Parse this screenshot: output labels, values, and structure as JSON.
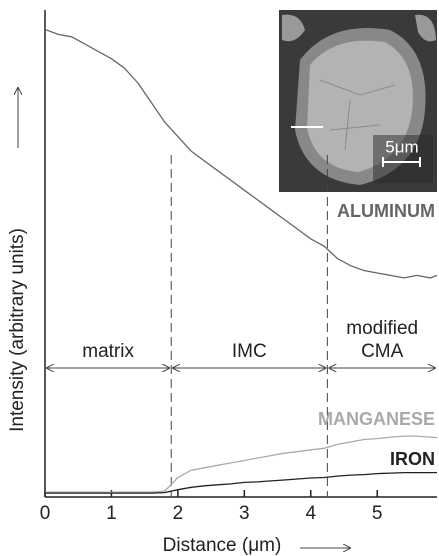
{
  "chart_data": {
    "type": "line",
    "x_label": "Distance (μm)",
    "y_label": "Intensity (arbitrary units)",
    "x": [
      0,
      0.2,
      0.4,
      0.6,
      0.8,
      1.0,
      1.2,
      1.4,
      1.6,
      1.8,
      2.0,
      2.2,
      2.4,
      2.6,
      2.8,
      3.0,
      3.2,
      3.4,
      3.6,
      3.8,
      4.0,
      4.2,
      4.4,
      4.6,
      4.8,
      5.0,
      5.2,
      5.4,
      5.6,
      5.8,
      5.9
    ],
    "series": [
      {
        "name": "ALUMINUM",
        "color": "#666666",
        "values": [
          96,
          95,
          94.5,
          93,
          91.5,
          90,
          88,
          85,
          81,
          77,
          74,
          71,
          69,
          67,
          65,
          63,
          61,
          59,
          57,
          55,
          53,
          51.5,
          49,
          47.5,
          46.5,
          46,
          45.5,
          45,
          45.5,
          45,
          45.5
        ]
      },
      {
        "name": "MANGANESE",
        "color": "#aaaaaa",
        "values": [
          1,
          1,
          1,
          1,
          1,
          1,
          1,
          1,
          1,
          1.2,
          4,
          5.5,
          6,
          6.5,
          7,
          7.5,
          8,
          8.5,
          9,
          9.3,
          9.7,
          10,
          10.8,
          11.3,
          11.8,
          12,
          12.3,
          12.5,
          12.5,
          12.3,
          12.2
        ]
      },
      {
        "name": "IRON",
        "color": "#222222",
        "values": [
          0.8,
          0.8,
          0.8,
          0.8,
          0.8,
          0.8,
          0.8,
          0.8,
          0.8,
          0.9,
          1.5,
          2,
          2.3,
          2.5,
          2.7,
          3,
          3.1,
          3.3,
          3.5,
          3.7,
          3.9,
          4,
          4.3,
          4.5,
          4.6,
          4.8,
          4.9,
          5,
          5,
          5,
          5
        ]
      }
    ],
    "xlim": [
      0,
      5.9
    ],
    "xticks": [
      0,
      1,
      2,
      3,
      4,
      5
    ],
    "ylim": [
      0,
      100
    ],
    "boundaries": [
      1.9,
      4.25
    ],
    "regions": [
      {
        "lines": [
          "matrix"
        ]
      },
      {
        "lines": [
          "IMC"
        ]
      },
      {
        "lines": [
          "modified",
          "CMA"
        ]
      }
    ],
    "inset_scale_label": "5μm"
  }
}
